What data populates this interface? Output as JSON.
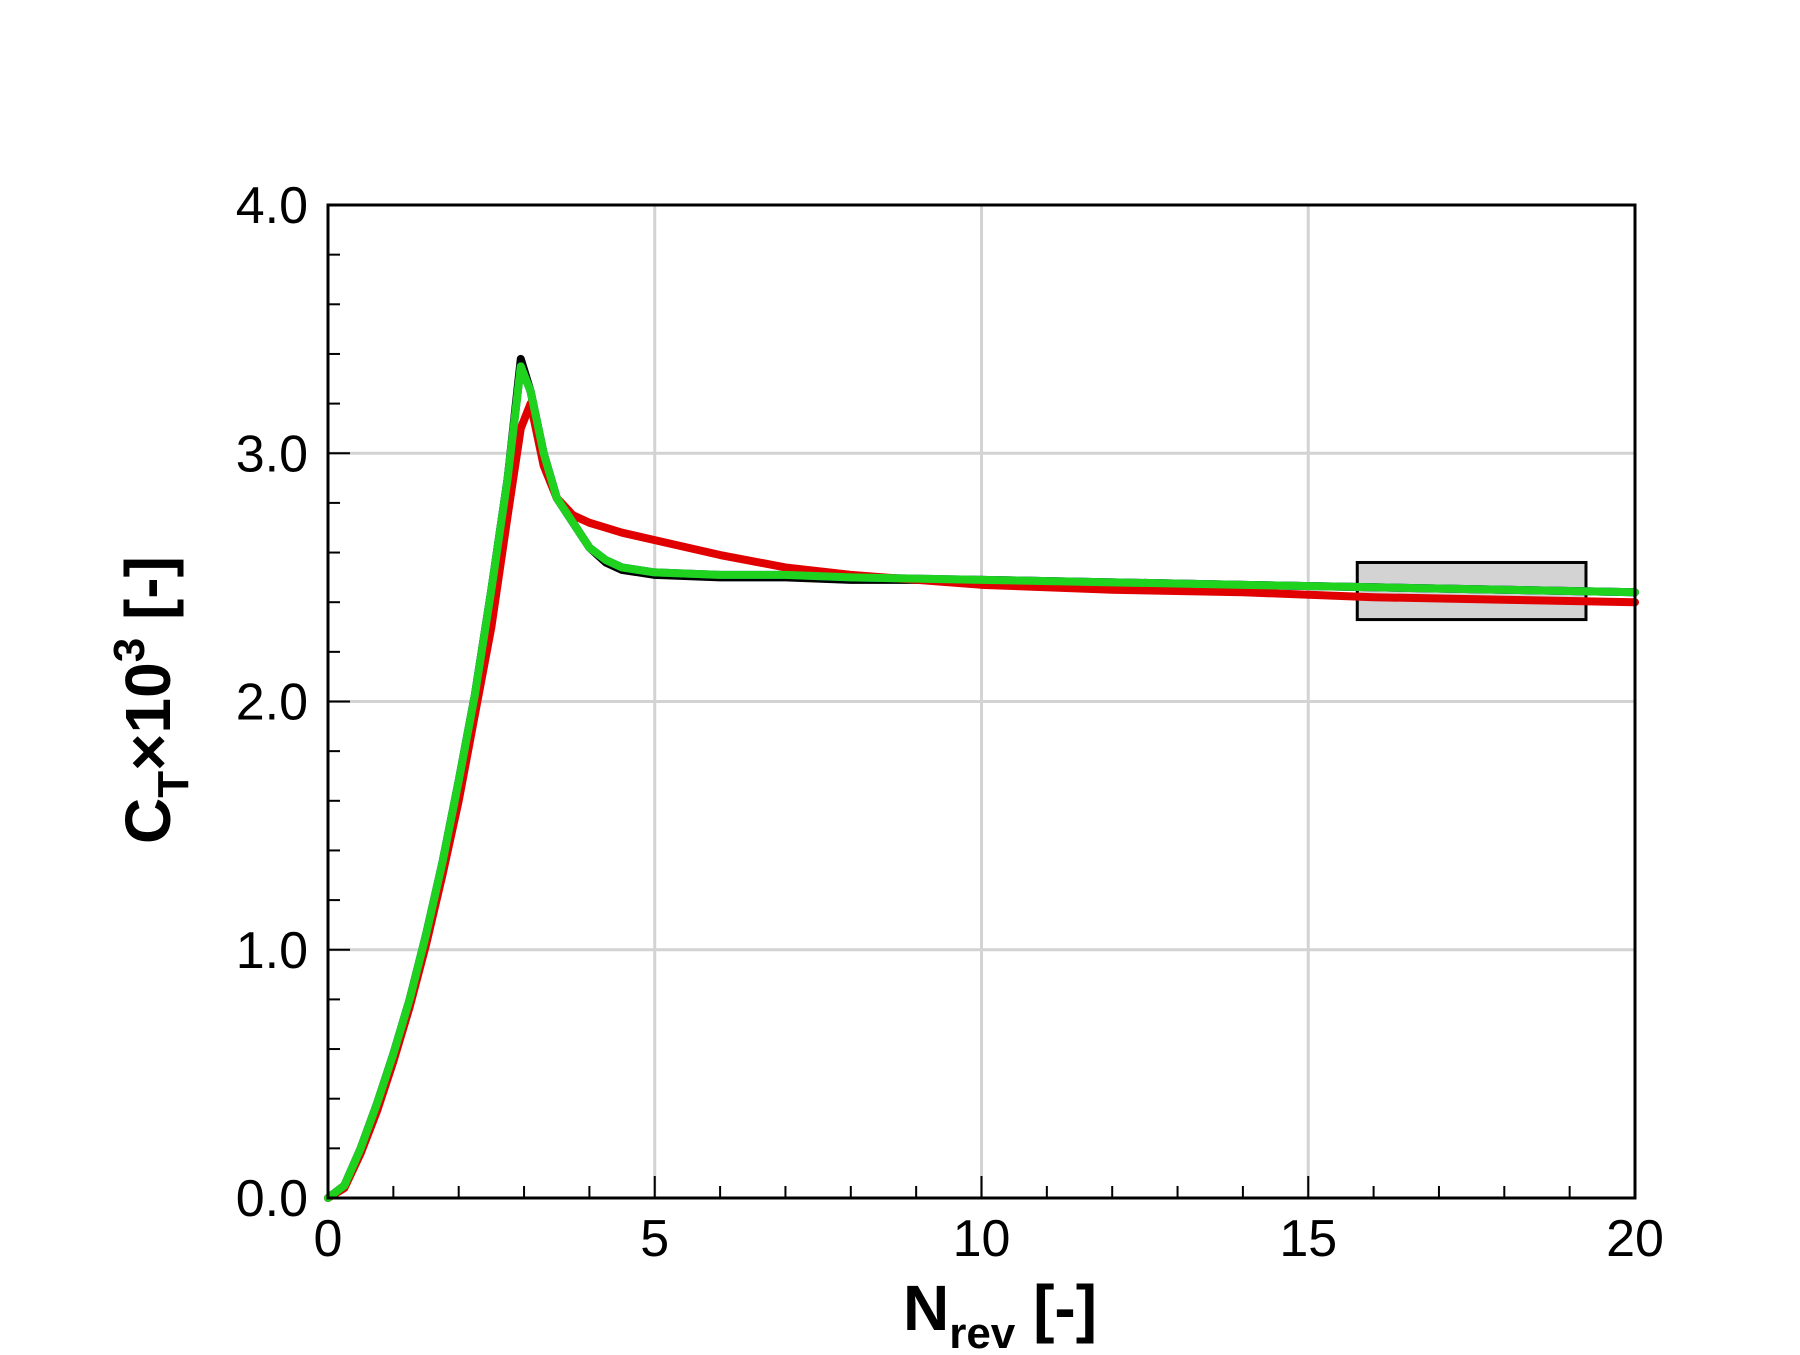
{
  "chart_data": {
    "type": "line",
    "xlabel": {
      "main": "N",
      "sub": "rev",
      "end": " [-]"
    },
    "ylabel": {
      "main": "C",
      "sub": "T",
      "mid": "×10",
      "sup": "3",
      "end": " [-]"
    },
    "x": [
      0,
      0.25,
      0.5,
      0.75,
      1,
      1.25,
      1.5,
      1.75,
      2,
      2.25,
      2.5,
      2.75,
      2.95,
      3.1,
      3.3,
      3.5,
      3.75,
      4,
      4.25,
      4.5,
      5,
      6,
      7,
      8,
      10,
      12,
      14,
      16,
      18,
      20
    ],
    "series": [
      {
        "color": "#000000",
        "values": [
          0,
          0.05,
          0.2,
          0.38,
          0.58,
          0.8,
          1.06,
          1.35,
          1.68,
          2.03,
          2.45,
          2.9,
          3.38,
          3.25,
          3.0,
          2.82,
          2.72,
          2.62,
          2.56,
          2.53,
          2.51,
          2.5,
          2.5,
          2.49,
          2.49,
          2.48,
          2.47,
          2.46,
          2.45,
          2.44
        ]
      },
      {
        "color": "#1f3fd6",
        "values": [
          0,
          0.05,
          0.2,
          0.38,
          0.58,
          0.8,
          1.06,
          1.35,
          1.68,
          2.03,
          2.45,
          2.9,
          3.35,
          3.25,
          3.0,
          2.82,
          2.72,
          2.62,
          2.57,
          2.54,
          2.52,
          2.51,
          2.51,
          2.5,
          2.49,
          2.48,
          2.47,
          2.46,
          2.45,
          2.44
        ]
      },
      {
        "color": "#e00000",
        "values": [
          0,
          0.04,
          0.18,
          0.35,
          0.55,
          0.77,
          1.02,
          1.3,
          1.6,
          1.95,
          2.3,
          2.75,
          3.1,
          3.2,
          2.95,
          2.82,
          2.75,
          2.72,
          2.7,
          2.68,
          2.65,
          2.59,
          2.54,
          2.51,
          2.47,
          2.45,
          2.44,
          2.42,
          2.41,
          2.4
        ]
      },
      {
        "color": "#1ed21e",
        "values": [
          0,
          0.05,
          0.2,
          0.38,
          0.58,
          0.8,
          1.06,
          1.35,
          1.68,
          2.03,
          2.45,
          2.9,
          3.35,
          3.25,
          3.0,
          2.82,
          2.72,
          2.62,
          2.57,
          2.54,
          2.52,
          2.51,
          2.51,
          2.5,
          2.49,
          2.48,
          2.47,
          2.46,
          2.45,
          2.44
        ]
      }
    ],
    "band": {
      "x": [
        15.75,
        19.25
      ],
      "y": [
        2.33,
        2.56
      ],
      "color": "#d3d3d3"
    },
    "xlim": [
      0,
      20
    ],
    "ylim": [
      0,
      4
    ],
    "xticks": [
      0,
      5,
      10,
      15,
      20
    ],
    "yticks": [
      {
        "value": 0,
        "label": "0.0"
      },
      {
        "value": 1,
        "label": "1.0"
      },
      {
        "value": 2,
        "label": "2.0"
      },
      {
        "value": 3,
        "label": "3.0"
      },
      {
        "value": 4,
        "label": "4.0"
      }
    ],
    "xminorticks": [
      1,
      2,
      3,
      4,
      6,
      7,
      8,
      9,
      11,
      12,
      13,
      14,
      16,
      17,
      18,
      19
    ],
    "yminorticks": [
      0.2,
      0.4,
      0.6,
      0.8,
      1.2,
      1.4,
      1.6,
      1.8,
      2.2,
      2.4,
      2.6,
      2.8,
      3.2,
      3.4,
      3.6,
      3.8
    ],
    "grid": true
  }
}
